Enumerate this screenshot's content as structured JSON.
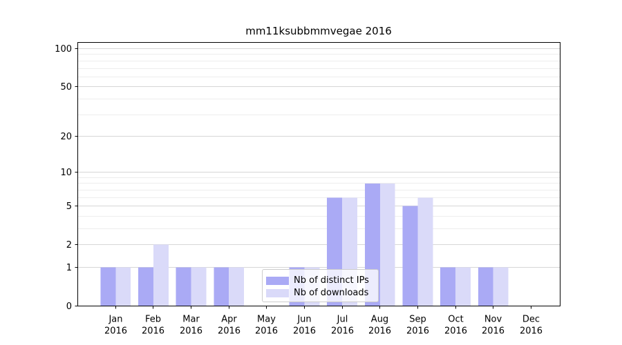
{
  "chart_data": {
    "type": "bar",
    "title": "mm11ksubbmmvegae 2016",
    "categories": [
      "Jan 2016",
      "Feb 2016",
      "Mar 2016",
      "Apr 2016",
      "May 2016",
      "Jun 2016",
      "Jul 2016",
      "Aug 2016",
      "Sep 2016",
      "Oct 2016",
      "Nov 2016",
      "Dec 2016"
    ],
    "series": [
      {
        "name": "Nb of distinct IPs",
        "color": "#aaaaf5",
        "values": [
          1,
          1,
          1,
          1,
          0,
          1,
          6,
          8,
          5,
          1,
          1,
          0
        ]
      },
      {
        "name": "Nb of downloads",
        "color": "#dadaf9",
        "values": [
          1,
          2,
          1,
          1,
          0,
          1,
          6,
          8,
          6,
          1,
          1,
          0
        ]
      }
    ],
    "y_axis": {
      "scale": "log1p",
      "tick_labels": [
        0,
        1,
        2,
        5,
        10,
        20,
        50,
        100
      ],
      "minor_gridlines": [
        3,
        4,
        6,
        7,
        8,
        9,
        30,
        40,
        60,
        70,
        80,
        90
      ],
      "ylim": [
        0,
        112
      ]
    },
    "xlabel": "",
    "ylabel": "",
    "grid": "on",
    "legend_position": "lower-center",
    "colors": {
      "major_grid": "#d6d6d6",
      "minor_grid": "#ededed",
      "axis": "#000000",
      "text": "#000000",
      "background": "#ffffff"
    }
  }
}
